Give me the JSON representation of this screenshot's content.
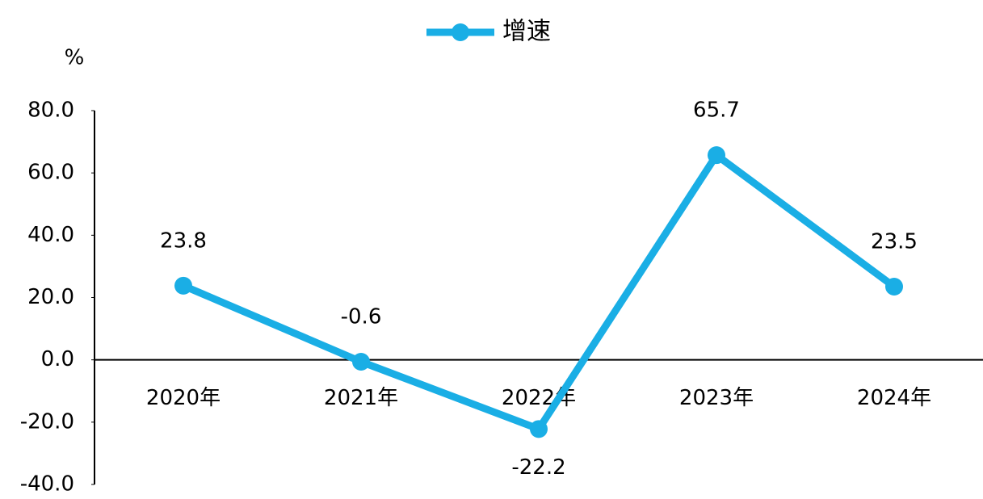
{
  "chart_data": {
    "type": "line",
    "ylabel": "%",
    "categories": [
      "2020年",
      "2021年",
      "2022年",
      "2023年",
      "2024年"
    ],
    "series": [
      {
        "name": "增速",
        "color": "#1aaee5",
        "values": [
          23.8,
          -0.6,
          -22.2,
          65.7,
          23.5
        ]
      }
    ],
    "ylim": [
      -40,
      80
    ],
    "yticks": [
      {
        "value": -40,
        "label": "-40.0"
      },
      {
        "value": -20,
        "label": "-20.0"
      },
      {
        "value": 0,
        "label": "0.0"
      },
      {
        "value": 20,
        "label": "20.0"
      },
      {
        "value": 40,
        "label": "40.0"
      },
      {
        "value": 60,
        "label": "60.0"
      },
      {
        "value": 80,
        "label": "80.0"
      }
    ],
    "legend": "top",
    "grid": false
  }
}
